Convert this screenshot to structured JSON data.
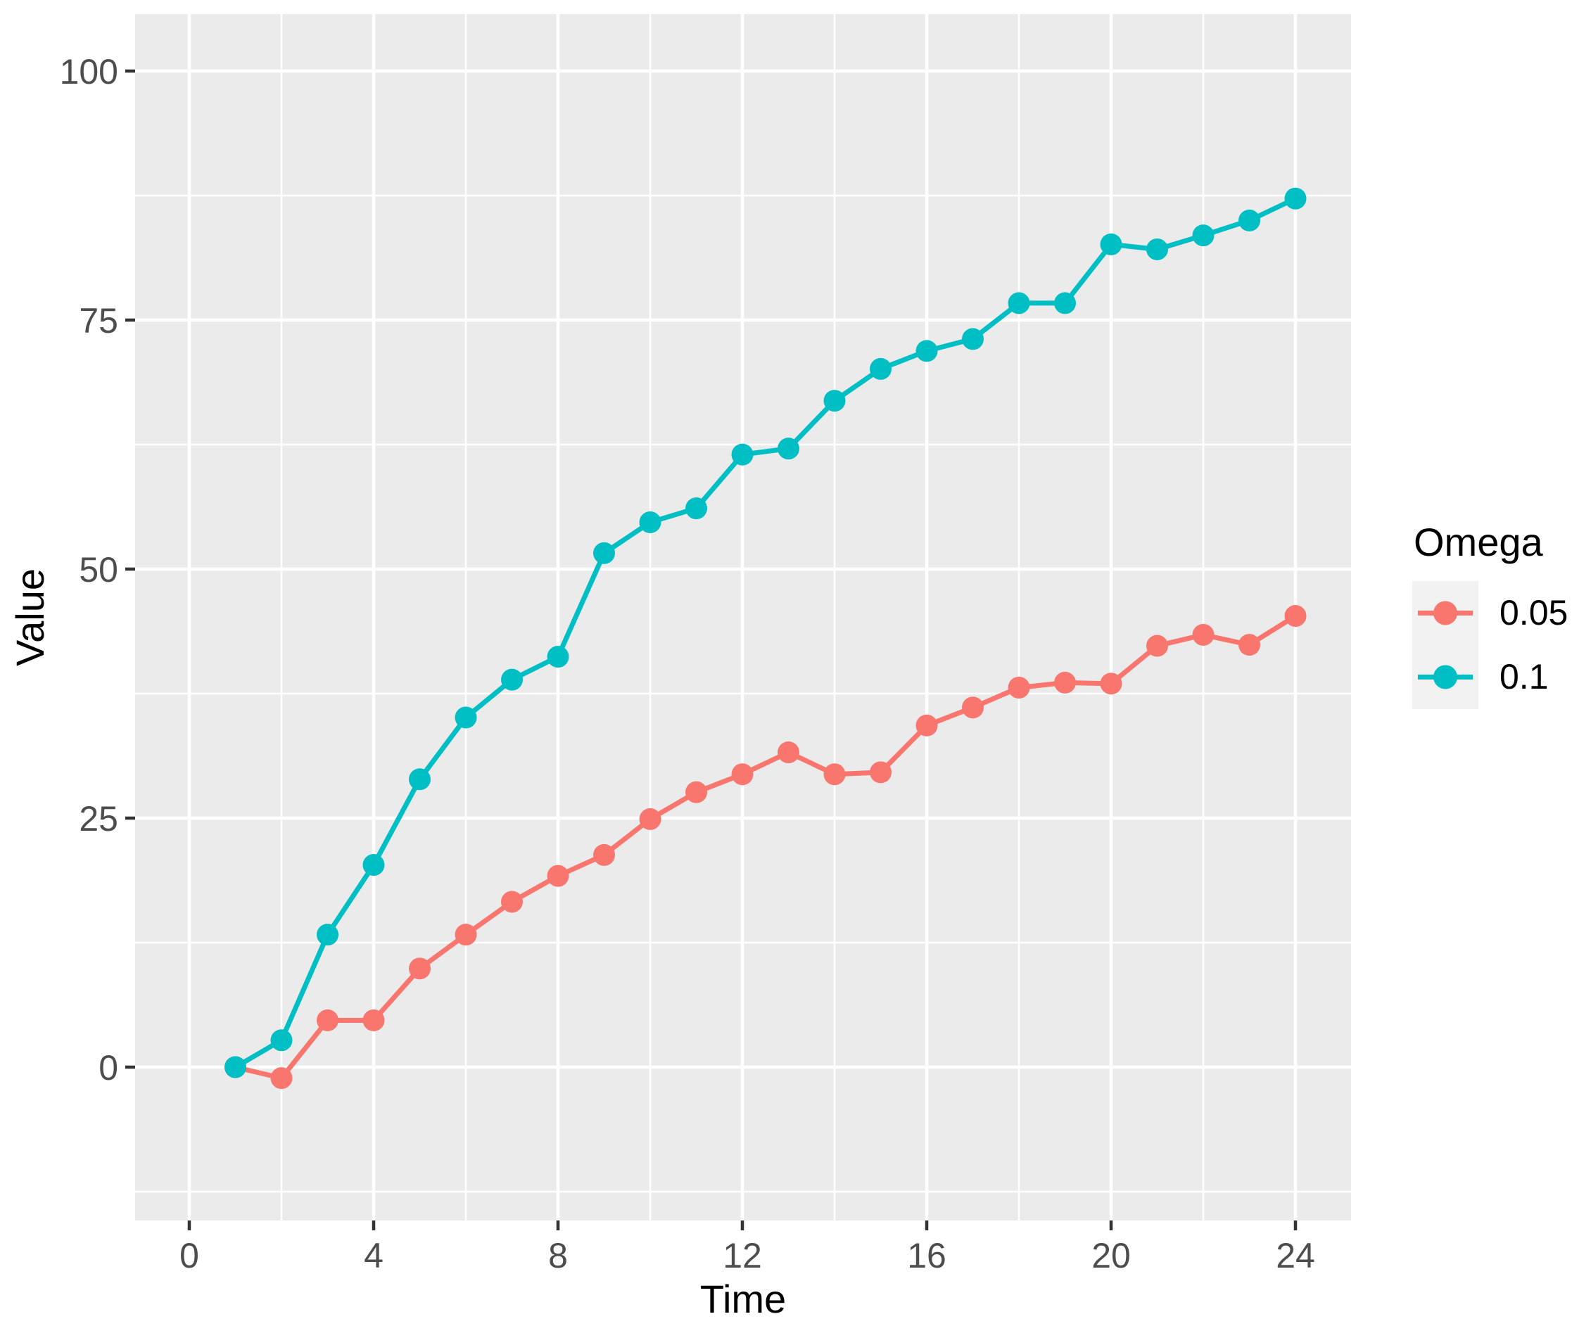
{
  "chart_data": {
    "type": "line",
    "title": "",
    "xlabel": "Time",
    "ylabel": "Value",
    "x": [
      1,
      2,
      3,
      4,
      5,
      6,
      7,
      8,
      9,
      10,
      11,
      12,
      13,
      14,
      15,
      16,
      17,
      18,
      19,
      20,
      21,
      22,
      23,
      24
    ],
    "series": [
      {
        "name": "0.05",
        "color": "#F8766D",
        "values": [
          0,
          -1.1,
          4.7,
          4.7,
          9.9,
          13.3,
          16.6,
          19.2,
          21.3,
          24.9,
          27.6,
          29.4,
          31.6,
          29.4,
          29.6,
          34.3,
          36.1,
          38.1,
          38.6,
          38.5,
          42.3,
          43.4,
          42.4,
          45.3
        ]
      },
      {
        "name": "0.1",
        "color": "#00BFC4",
        "values": [
          0,
          2.7,
          13.3,
          20.3,
          28.9,
          35.1,
          38.9,
          41.2,
          51.6,
          54.7,
          56.1,
          61.5,
          62.1,
          66.9,
          70.1,
          71.9,
          73.1,
          76.7,
          76.7,
          82.6,
          82.1,
          83.5,
          85,
          87.2
        ]
      }
    ],
    "x_ticks": [
      0,
      4,
      8,
      12,
      16,
      20,
      24
    ],
    "y_ticks": [
      0,
      25,
      50,
      75,
      100
    ],
    "x_minor_ticks": [
      2,
      6,
      10,
      14,
      18,
      22
    ],
    "y_minor_ticks": [
      -12.5,
      12.5,
      37.5,
      62.5,
      87.5
    ],
    "xlim": [
      -1.18,
      25.21
    ],
    "ylim": [
      -15.4,
      105.7
    ],
    "grid": true,
    "legend_position": "right"
  },
  "axes": {
    "x_title": "Time",
    "y_title": "Value"
  },
  "legend": {
    "title": "Omega",
    "items": [
      {
        "label": "0.05"
      },
      {
        "label": "0.1"
      }
    ]
  },
  "colors": {
    "panel_bg": "#EBEBEB",
    "grid": "#FFFFFF",
    "tick_mark": "#333333",
    "tick_label": "#4D4D4D",
    "axis_title": "#000000",
    "legend_key_bg": "#F2F2F2",
    "series_005": "#F8766D",
    "series_01": "#00BFC4"
  }
}
